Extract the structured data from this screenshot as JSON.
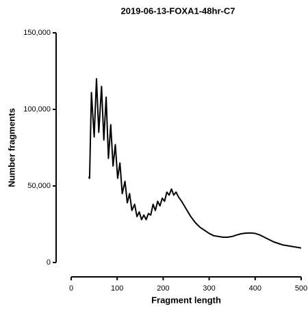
{
  "chart_data": {
    "type": "line",
    "title": "2019-06-13-FOXA1-48hr-C7",
    "x_label": "Fragment length",
    "y_label": "Number fragments",
    "x": [
      38,
      40,
      44,
      50,
      55,
      60,
      66,
      71,
      76,
      81,
      86,
      91,
      96,
      101,
      106,
      111,
      117,
      122,
      127,
      132,
      138,
      143,
      148,
      153,
      158,
      163,
      168,
      173,
      178,
      183,
      188,
      193,
      198,
      203,
      208,
      213,
      218,
      223,
      228,
      233,
      240,
      250,
      260,
      270,
      280,
      290,
      300,
      310,
      320,
      330,
      340,
      350,
      360,
      370,
      380,
      390,
      400,
      410,
      420,
      430,
      440,
      450,
      460,
      470,
      480,
      490,
      500
    ],
    "values": [
      56000,
      55000,
      111000,
      82000,
      120000,
      85000,
      115000,
      80000,
      108000,
      68000,
      90000,
      63000,
      77000,
      55000,
      65000,
      45000,
      53000,
      39000,
      45000,
      34000,
      38000,
      30000,
      33000,
      28000,
      31000,
      28000,
      32000,
      31000,
      38000,
      34000,
      40000,
      37000,
      42000,
      40000,
      46000,
      44000,
      48000,
      44000,
      46000,
      43000,
      40000,
      35000,
      30000,
      26000,
      23000,
      21000,
      19000,
      17500,
      17000,
      16500,
      16500,
      17000,
      18000,
      18800,
      19200,
      19300,
      19000,
      18000,
      16500,
      15000,
      13500,
      12500,
      11500,
      11000,
      10500,
      10000,
      9500
    ],
    "color": "#000000",
    "xlim": [
      0,
      500
    ],
    "xticks": [
      0,
      100,
      200,
      300,
      400,
      500
    ],
    "ylim": [
      0,
      150000
    ],
    "yticks": [
      {
        "value": 0,
        "label": "0"
      },
      {
        "value": 50000,
        "label": "50,000"
      },
      {
        "value": 100000,
        "label": "100,000"
      },
      {
        "value": 150000,
        "label": "150,000"
      }
    ]
  }
}
